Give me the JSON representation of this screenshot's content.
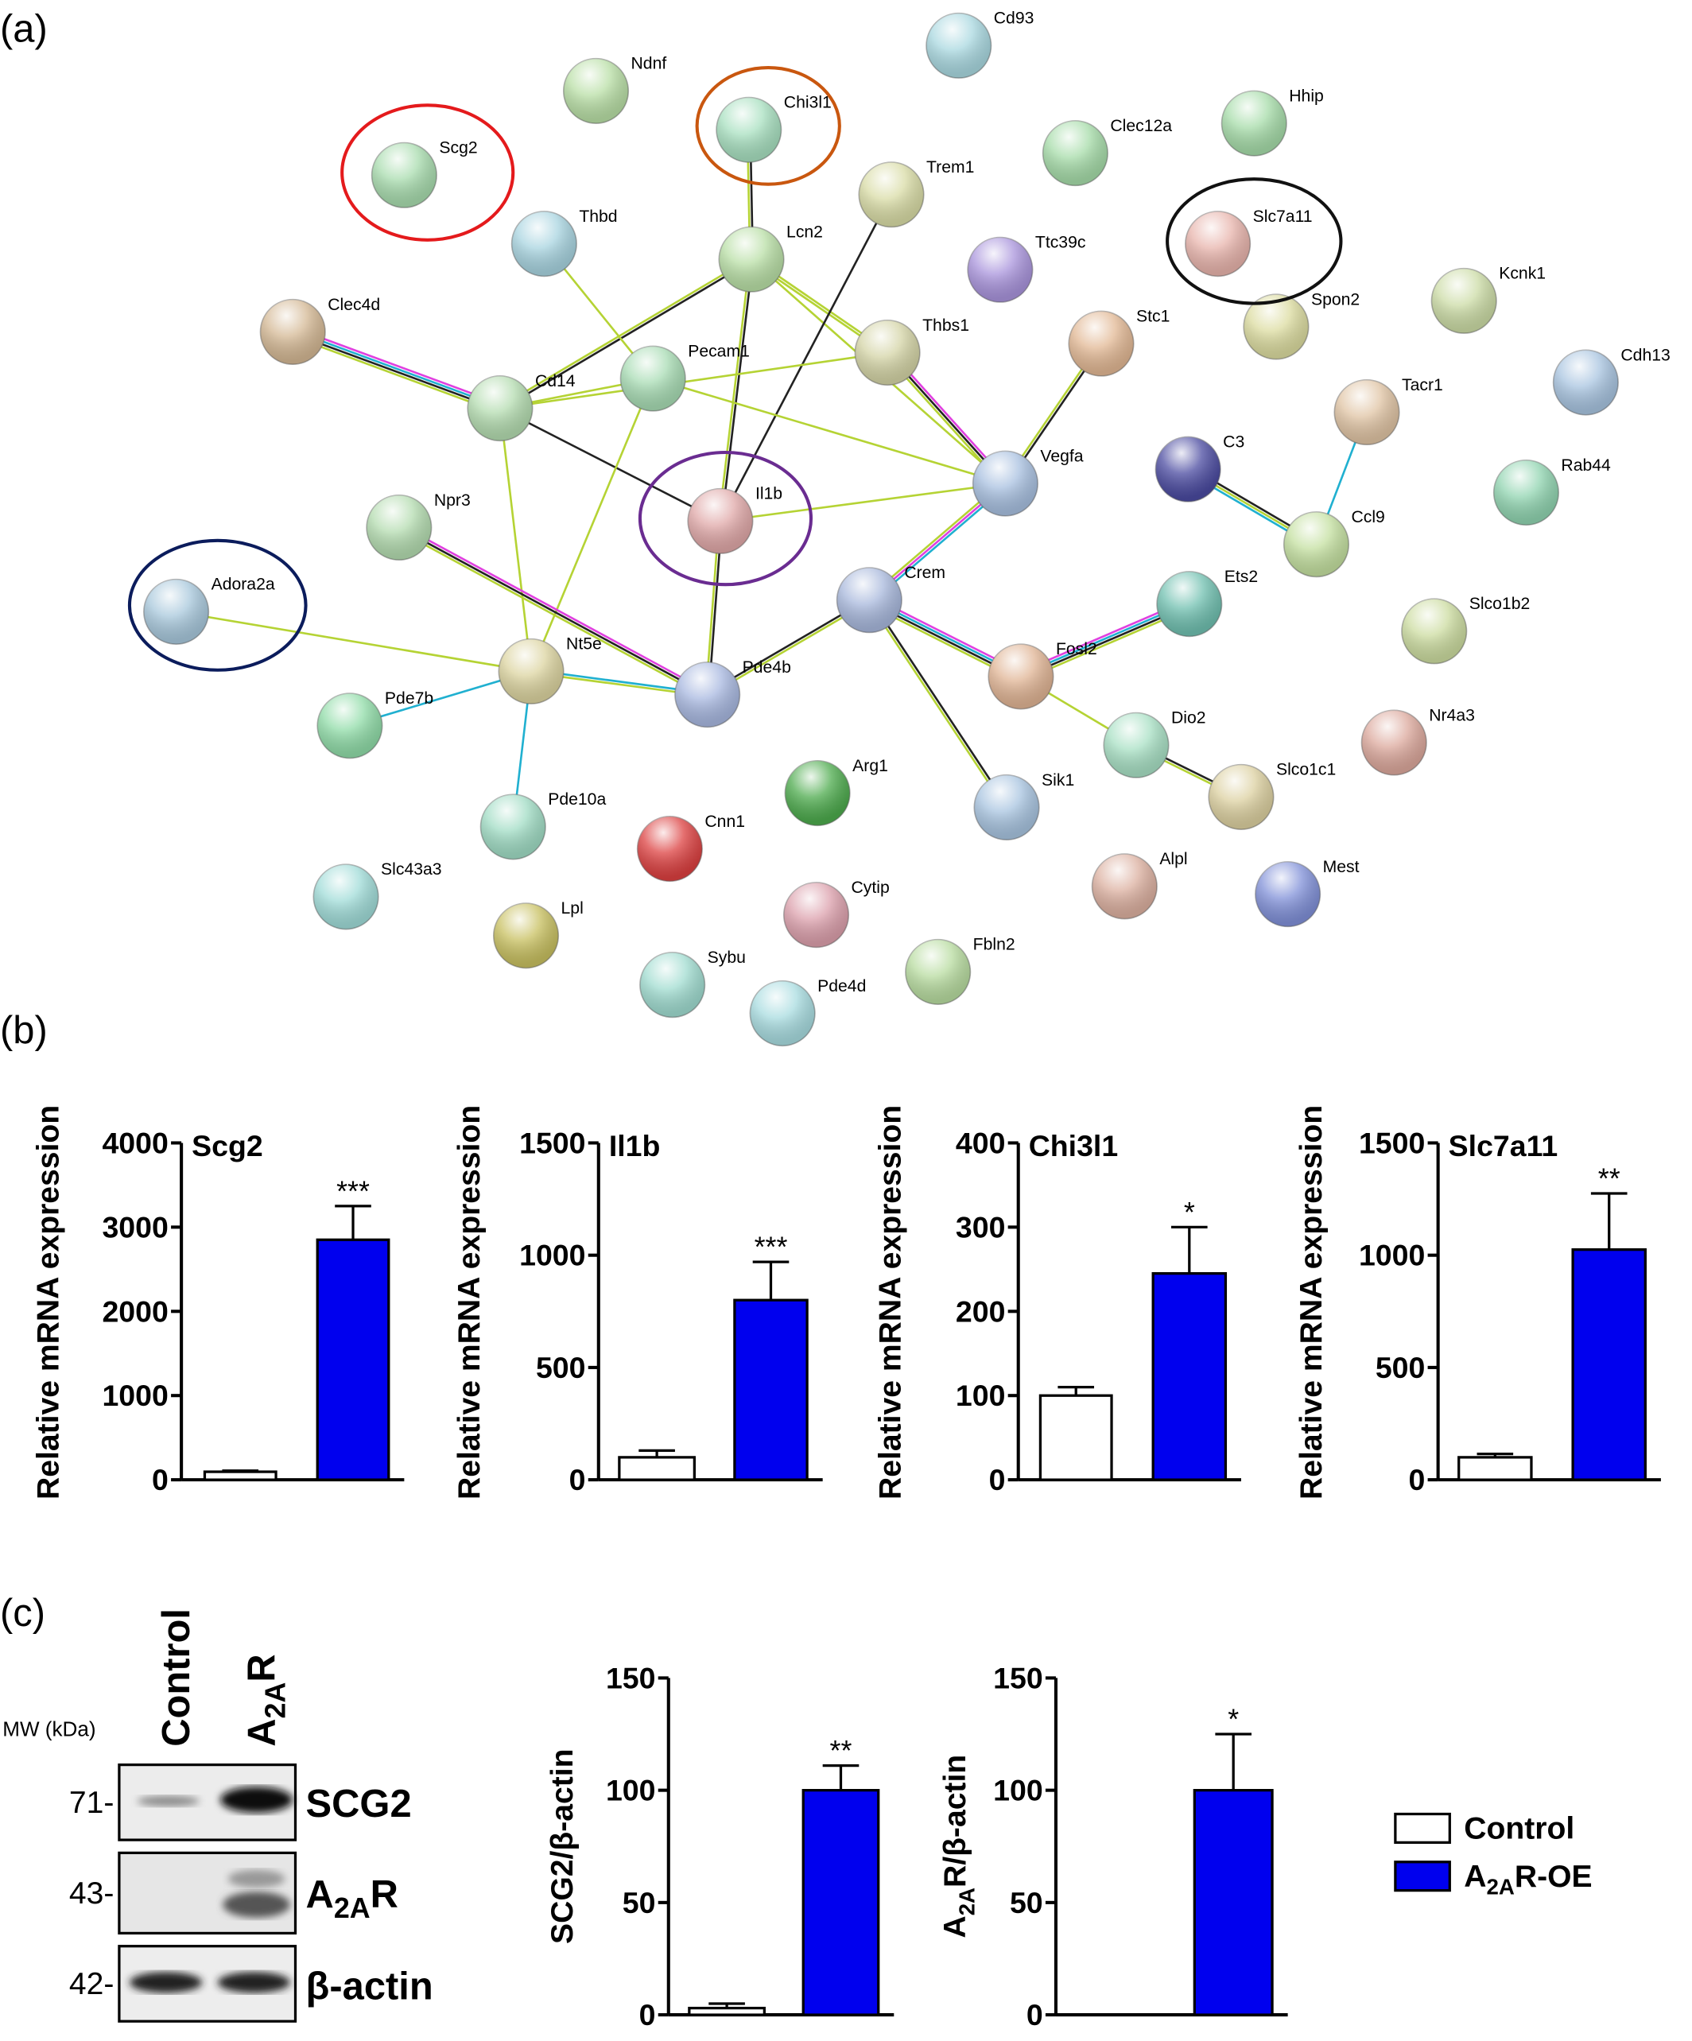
{
  "panels": [
    "(a)",
    "(b)",
    "(c)"
  ],
  "network": {
    "nodes": [
      {
        "label": "Cd93"
      },
      {
        "label": "Ndnf"
      },
      {
        "label": "Chi3l1"
      },
      {
        "label": "Hhip"
      },
      {
        "label": "Scg2"
      },
      {
        "label": "Clec12a"
      },
      {
        "label": "Trem1"
      },
      {
        "label": "Thbd"
      },
      {
        "label": "Slc7a11"
      },
      {
        "label": "Lcn2"
      },
      {
        "label": "Ttc39c"
      },
      {
        "label": "Kcnk1"
      },
      {
        "label": "Clec4d"
      },
      {
        "label": "Spon2"
      },
      {
        "label": "Thbs1"
      },
      {
        "label": "Stc1"
      },
      {
        "label": "Pecam1"
      },
      {
        "label": "Cd14"
      },
      {
        "label": "Cdh13"
      },
      {
        "label": "Tacr1"
      },
      {
        "label": "Vegfa"
      },
      {
        "label": "C3"
      },
      {
        "label": "Rab44"
      },
      {
        "label": "Il1b"
      },
      {
        "label": "Npr3"
      },
      {
        "label": "Ccl9"
      },
      {
        "label": "Adora2a"
      },
      {
        "label": "Crem"
      },
      {
        "label": "Ets2"
      },
      {
        "label": "Slco1b2"
      },
      {
        "label": "Fosl2"
      },
      {
        "label": "Nt5e"
      },
      {
        "label": "Pde4b"
      },
      {
        "label": "Pde7b"
      },
      {
        "label": "Dio2"
      },
      {
        "label": "Nr4a3"
      },
      {
        "label": "Slco1c1"
      },
      {
        "label": "Arg1"
      },
      {
        "label": "Sik1"
      },
      {
        "label": "Pde10a"
      },
      {
        "label": "Cnn1"
      },
      {
        "label": "Slc43a3"
      },
      {
        "label": "Alpl"
      },
      {
        "label": "Mest"
      },
      {
        "label": "Cytip"
      },
      {
        "label": "Lpl"
      },
      {
        "label": "Fbln2"
      },
      {
        "label": "Sybu"
      },
      {
        "label": "Pde4d"
      }
    ]
  },
  "chart_data": [
    {
      "type": "bar",
      "title": "Scg2",
      "ylabel": "Relative mRNA expression",
      "values": [
        95,
        2850
      ],
      "errors": [
        12,
        400
      ],
      "annotation": "***",
      "ylim": [
        0,
        4000
      ],
      "yticks": [
        0,
        1000,
        2000,
        3000,
        4000
      ]
    },
    {
      "type": "bar",
      "title": "Il1b",
      "ylabel": "Relative mRNA expression",
      "values": [
        100,
        800
      ],
      "errors": [
        30,
        170
      ],
      "annotation": "***",
      "ylim": [
        0,
        1500
      ],
      "yticks": [
        0,
        500,
        1000,
        1500
      ]
    },
    {
      "type": "bar",
      "title": "Chi3l1",
      "ylabel": "Relative mRNA expression",
      "values": [
        100,
        245
      ],
      "errors": [
        10,
        55
      ],
      "annotation": "*",
      "ylim": [
        0,
        400
      ],
      "yticks": [
        0,
        100,
        200,
        300,
        400
      ]
    },
    {
      "type": "bar",
      "title": "Slc7a11",
      "ylabel": "Relative mRNA expression",
      "values": [
        100,
        1025
      ],
      "errors": [
        15,
        250
      ],
      "annotation": "**",
      "ylim": [
        0,
        1500
      ],
      "yticks": [
        0,
        500,
        1000,
        1500
      ]
    },
    {
      "type": "bar",
      "ylabel": "SCG2/β-actin",
      "values": [
        3,
        100
      ],
      "errors": [
        2,
        11
      ],
      "annotation": "**",
      "ylim": [
        0,
        150
      ],
      "yticks": [
        0,
        50,
        100,
        150
      ]
    },
    {
      "type": "bar",
      "ylabel": {
        "prefix": "A",
        "sub": "2A",
        "suffix": "R/β-actin"
      },
      "values": [
        0,
        100
      ],
      "errors": [
        0,
        25
      ],
      "annotation": "*",
      "ylim": [
        0,
        150
      ],
      "yticks": [
        0,
        50,
        100,
        150
      ]
    }
  ],
  "legend": [
    {
      "name": "Control",
      "color": "#ffffff"
    },
    {
      "name": {
        "prefix": "A",
        "sub": "2A",
        "suffix": "R-OE"
      },
      "color": "#0000ee"
    }
  ],
  "blot": {
    "lanes": [
      "Control",
      {
        "prefix": "A",
        "sub": "2A",
        "suffix": "R"
      }
    ],
    "mw_label": "MW (kDa)",
    "markers": [
      "71-",
      "43-",
      "42-"
    ],
    "bands": [
      "SCG2",
      {
        "prefix": "A",
        "sub": "2A",
        "suffix": "R"
      },
      "β-actin"
    ]
  }
}
